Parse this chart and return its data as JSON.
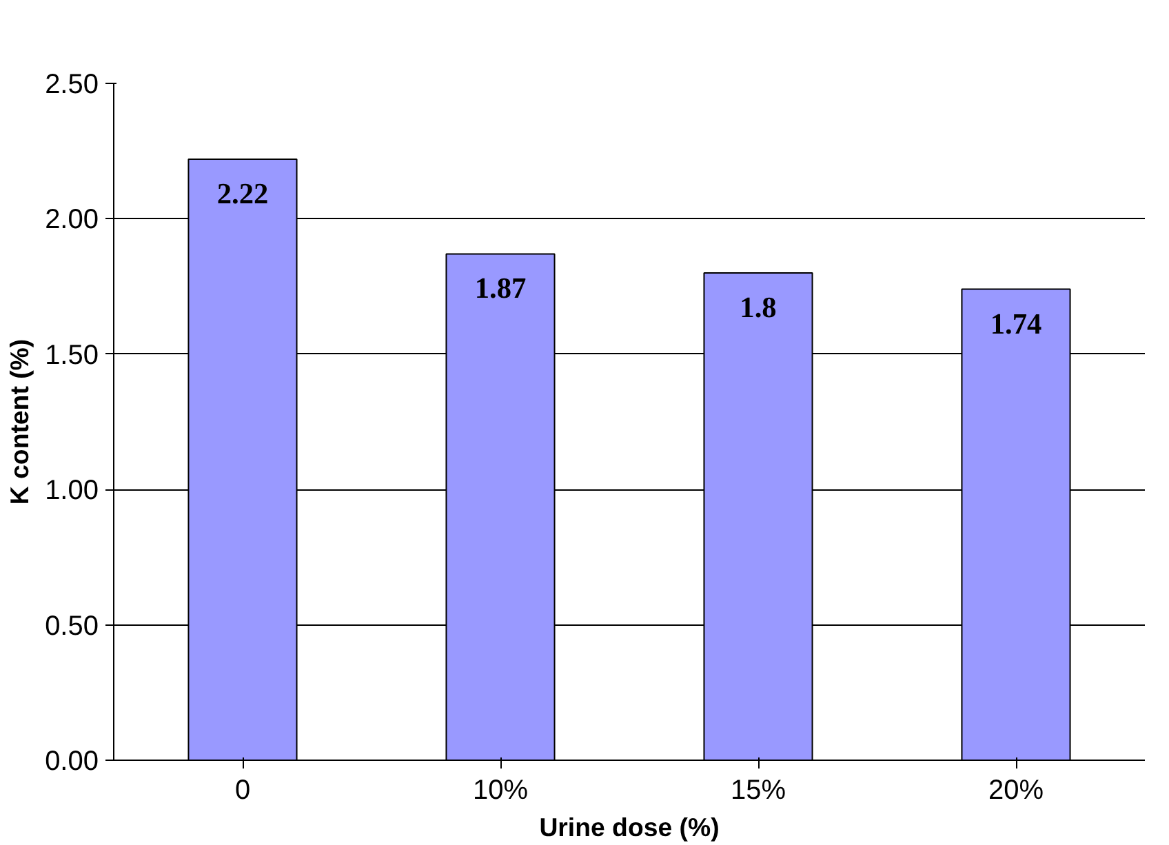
{
  "chart_data": {
    "type": "bar",
    "xlabel": "Urine dose (%)",
    "ylabel": "K content (%)",
    "categories": [
      "0",
      "10%",
      "15%",
      "20%"
    ],
    "values": [
      2.22,
      1.87,
      1.8,
      1.74
    ],
    "color": "#9999ff",
    "ylim": [
      0,
      2.5
    ],
    "yticks": [
      {
        "value": 0,
        "label": "0.00"
      },
      {
        "value": 0.5,
        "label": "0.50"
      },
      {
        "value": 1,
        "label": "1.00"
      },
      {
        "value": 1.5,
        "label": "1.50"
      },
      {
        "value": 2,
        "label": "2.00"
      },
      {
        "value": 2.5,
        "label": "2.50"
      }
    ],
    "grid": "y",
    "data_labels": true
  }
}
